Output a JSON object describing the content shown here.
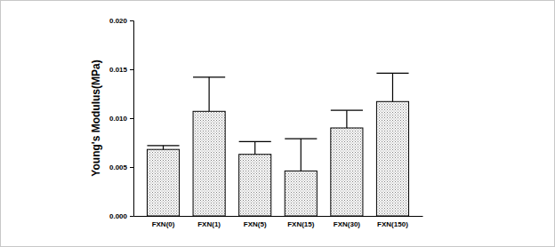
{
  "chart_data": {
    "type": "bar",
    "y_label": "Young's Modulus(MPa)",
    "categories": [
      "FXN(0)",
      "FXN(1)",
      "FXN(5)",
      "FXN(15)",
      "FXN(30)",
      "FXN(150)"
    ],
    "values": [
      0.0068,
      0.0107,
      0.0063,
      0.0046,
      0.009,
      0.0117
    ],
    "errors": [
      0.0004,
      0.0035,
      0.0013,
      0.0033,
      0.0018,
      0.0029
    ],
    "color": "#808080",
    "ylim": [
      0,
      0.02
    ],
    "yticks": [
      {
        "value": 0,
        "label": "0.000"
      },
      {
        "value": 0.005,
        "label": "0.005"
      },
      {
        "value": 0.01,
        "label": "0.010"
      },
      {
        "value": 0.015,
        "label": "0.015"
      },
      {
        "value": 0.02,
        "label": "0.020"
      }
    ]
  }
}
